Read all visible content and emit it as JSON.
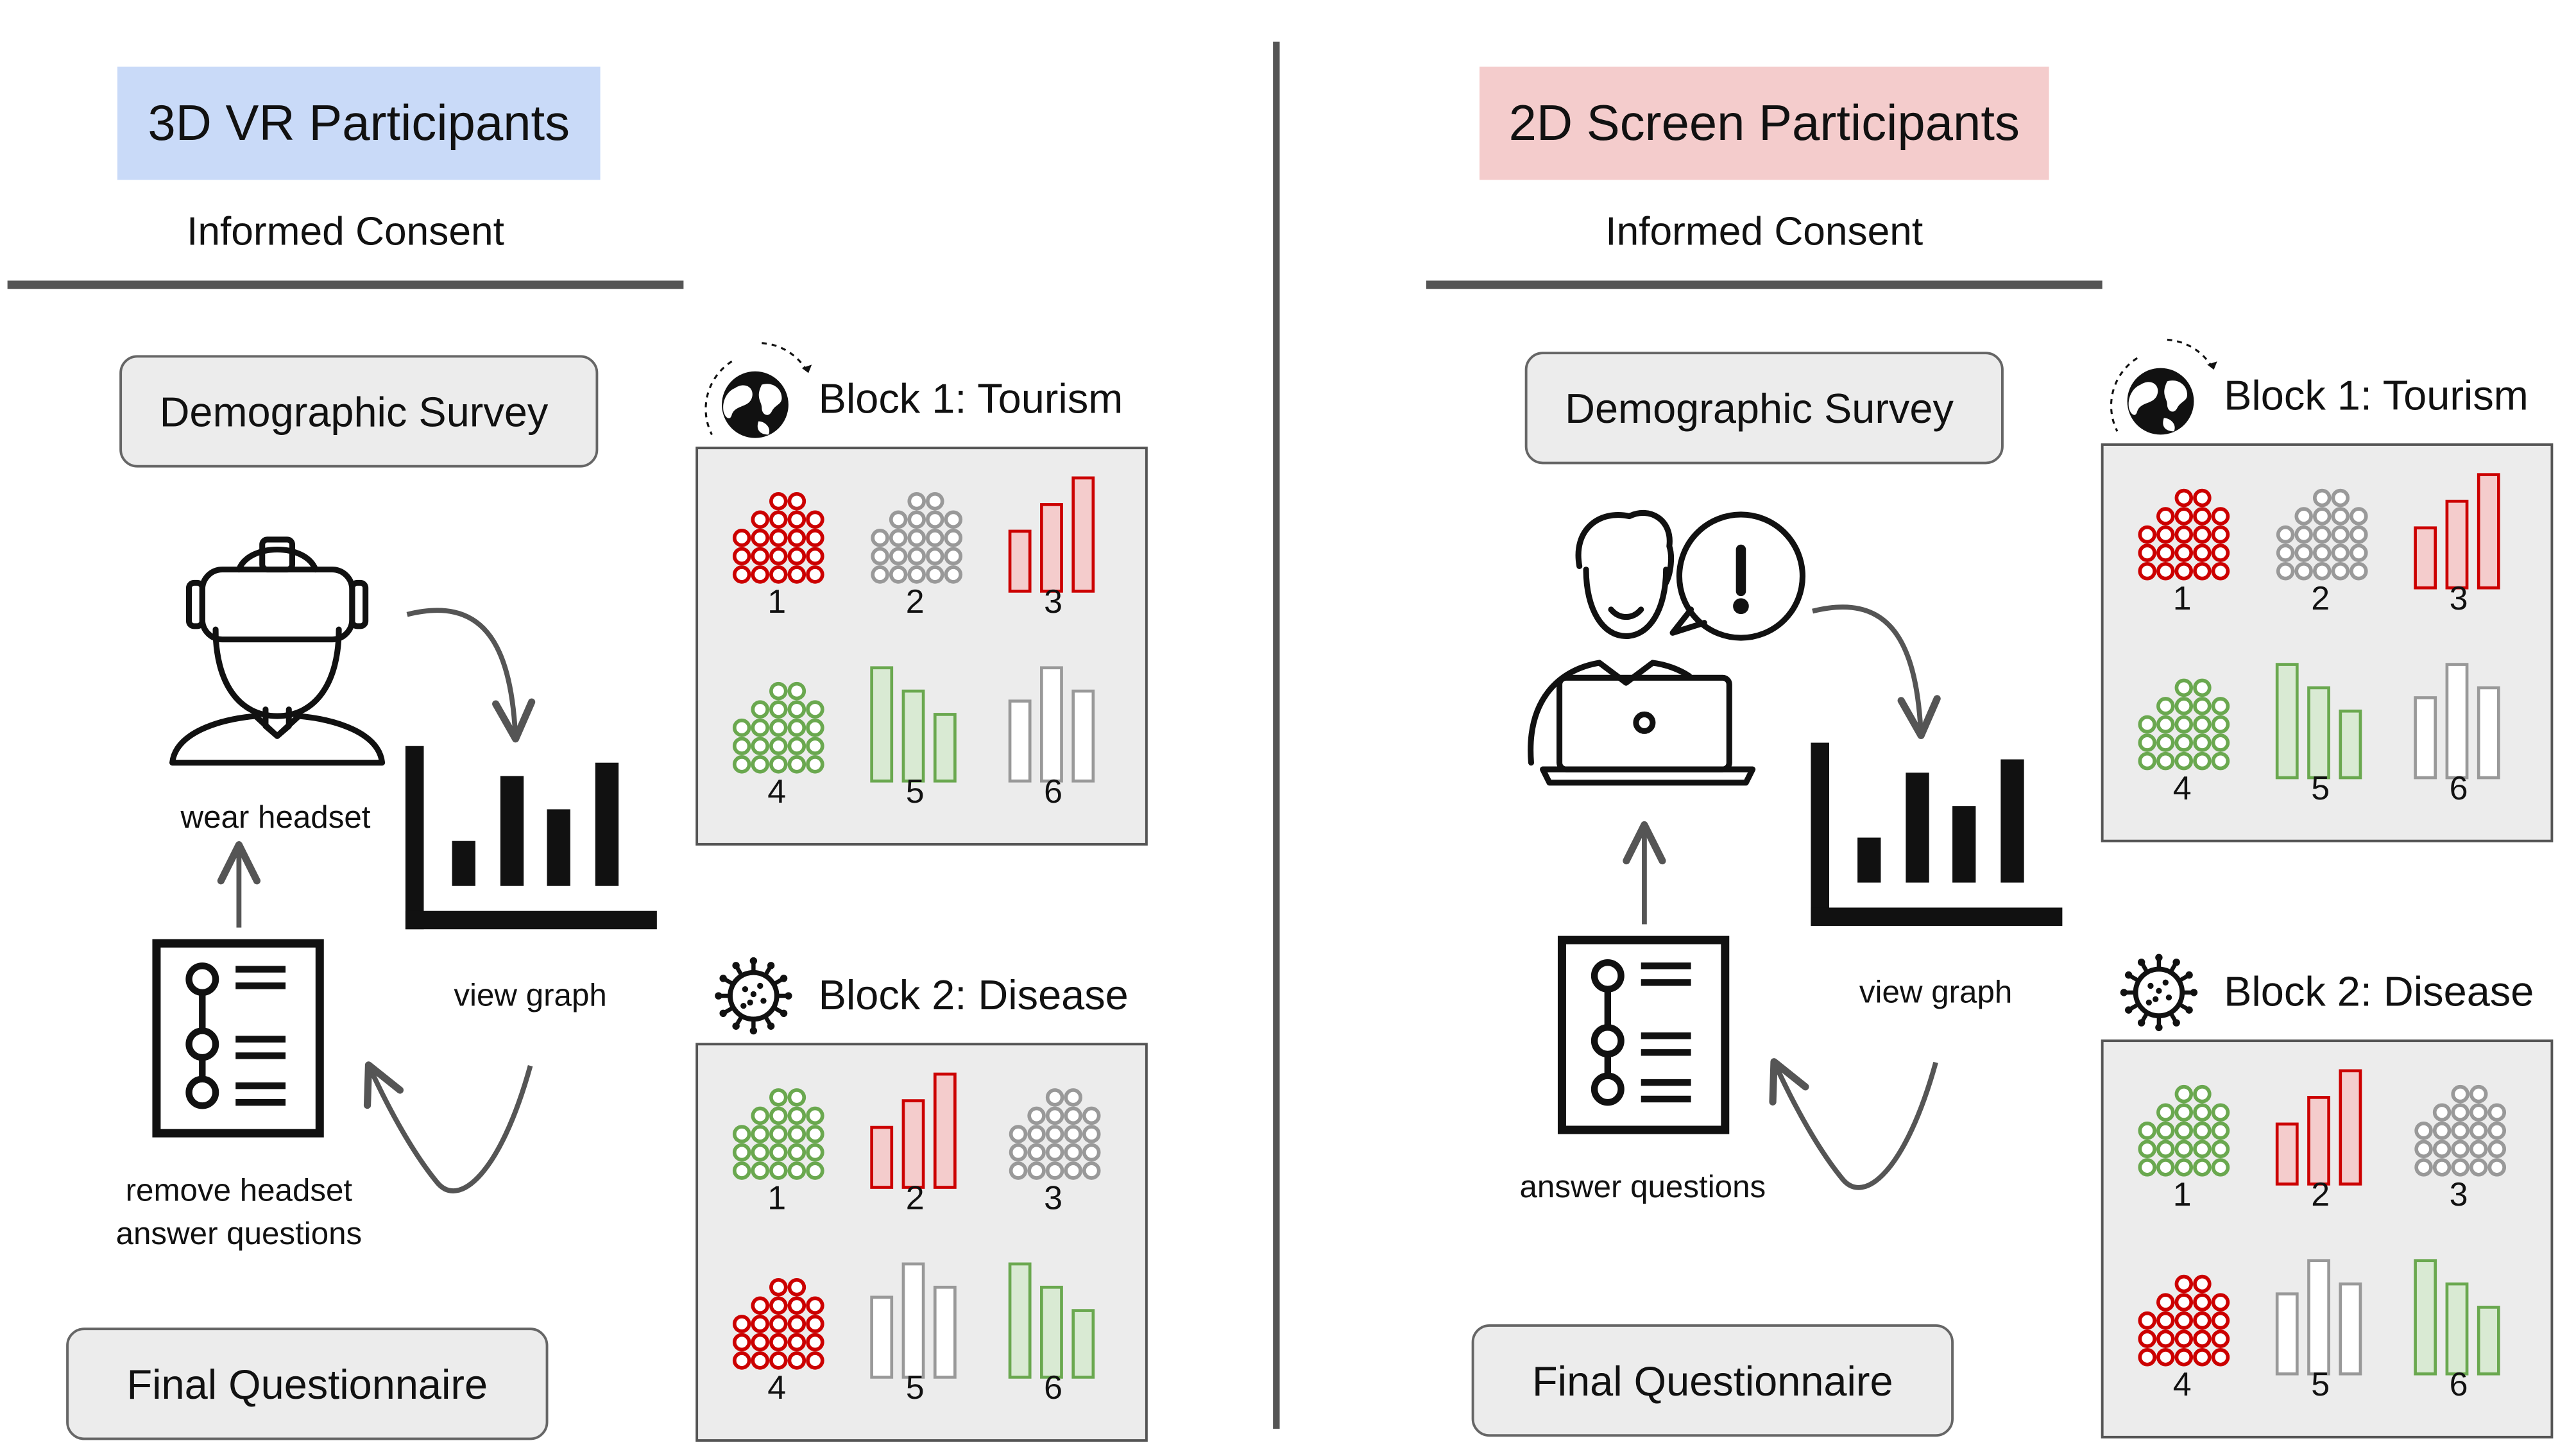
{
  "colors": {
    "vr_header": "#c9daf8",
    "screen_header": "#f4cccc",
    "box_fill": "#ececec",
    "box_stroke": "#666666",
    "divider": "#555555",
    "red": "#cc0000",
    "red_fill": "#f4cccc",
    "green": "#6aa84f",
    "green_fill": "#d9ead3",
    "gray": "#999999",
    "icon": "#111111",
    "arrow": "#555555"
  },
  "icons": {
    "globe": "globe-icon",
    "virus": "virus-icon",
    "vr_person": "vr-headset-person-icon",
    "laptop_person": "laptop-person-icon",
    "bar_chart": "bar-chart-icon",
    "checklist": "checklist-icon"
  },
  "panels": [
    {
      "id": "vr",
      "header": "3D VR Participants",
      "consent": "Informed Consent",
      "survey": "Demographic Survey",
      "participant_label": "wear headset",
      "graph_label": "view graph",
      "questions_label_1": "remove headset",
      "questions_label_2": "answer questions",
      "final": "Final Questionnaire",
      "blocks": [
        {
          "title": "Block 1: Tourism",
          "icon": "globe-icon",
          "cells": [
            {
              "label": "1",
              "kind": "dots",
              "color": "red"
            },
            {
              "label": "2",
              "kind": "dots",
              "color": "gray"
            },
            {
              "label": "3",
              "kind": "bars-up",
              "color": "red"
            },
            {
              "label": "4",
              "kind": "dots",
              "color": "green"
            },
            {
              "label": "5",
              "kind": "bars-down",
              "color": "green"
            },
            {
              "label": "6",
              "kind": "bars-gray",
              "color": "gray"
            }
          ]
        },
        {
          "title": "Block 2: Disease",
          "icon": "virus-icon",
          "cells": [
            {
              "label": "1",
              "kind": "dots",
              "color": "green"
            },
            {
              "label": "2",
              "kind": "bars-up",
              "color": "red"
            },
            {
              "label": "3",
              "kind": "dots",
              "color": "gray"
            },
            {
              "label": "4",
              "kind": "dots",
              "color": "red"
            },
            {
              "label": "5",
              "kind": "bars-gray",
              "color": "gray"
            },
            {
              "label": "6",
              "kind": "bars-down",
              "color": "green"
            }
          ]
        }
      ]
    },
    {
      "id": "screen",
      "header": "2D Screen Participants",
      "consent": "Informed Consent",
      "survey": "Demographic Survey",
      "participant_label": "",
      "graph_label": "view graph",
      "questions_label_1": "answer questions",
      "questions_label_2": "",
      "final": "Final Questionnaire",
      "blocks": [
        {
          "title": "Block 1: Tourism",
          "icon": "globe-icon",
          "cells": [
            {
              "label": "1",
              "kind": "dots",
              "color": "red"
            },
            {
              "label": "2",
              "kind": "dots",
              "color": "gray"
            },
            {
              "label": "3",
              "kind": "bars-up",
              "color": "red"
            },
            {
              "label": "4",
              "kind": "dots",
              "color": "green"
            },
            {
              "label": "5",
              "kind": "bars-down",
              "color": "green"
            },
            {
              "label": "6",
              "kind": "bars-gray",
              "color": "gray"
            }
          ]
        },
        {
          "title": "Block 2: Disease",
          "icon": "virus-icon",
          "cells": [
            {
              "label": "1",
              "kind": "dots",
              "color": "green"
            },
            {
              "label": "2",
              "kind": "bars-up",
              "color": "red"
            },
            {
              "label": "3",
              "kind": "dots",
              "color": "gray"
            },
            {
              "label": "4",
              "kind": "dots",
              "color": "red"
            },
            {
              "label": "5",
              "kind": "bars-gray",
              "color": "gray"
            },
            {
              "label": "6",
              "kind": "bars-down",
              "color": "green"
            }
          ]
        }
      ]
    }
  ]
}
